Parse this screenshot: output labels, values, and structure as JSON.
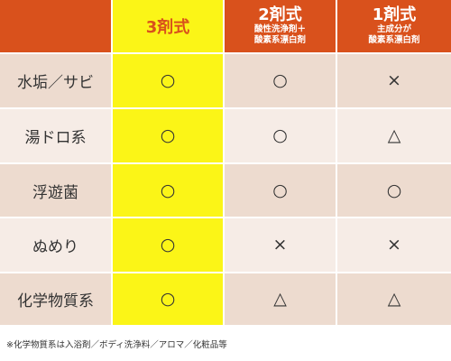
{
  "header": {
    "col1_label": "",
    "col2_label": "3剤式",
    "col3_label": "2剤式",
    "col3_sub1": "酸性洗浄剤＋",
    "col3_sub2": "酸素系漂白剤",
    "col4_label": "1剤式",
    "col4_sub1": "主成分が",
    "col4_sub2": "酸素系漂白剤"
  },
  "rows": [
    {
      "label": "水垢／サビ",
      "three": "○",
      "two": "○",
      "one": "×"
    },
    {
      "label": "湯ドロ系",
      "three": "○",
      "two": "○",
      "one": "△"
    },
    {
      "label": "浮遊菌",
      "three": "○",
      "two": "○",
      "one": "○"
    },
    {
      "label": "ぬめり",
      "three": "○",
      "two": "×",
      "one": "×"
    },
    {
      "label": "化学物質系",
      "three": "○",
      "two": "△",
      "one": "△"
    }
  ],
  "footnote": "※化学物質系は入浴剤／ボディ洗浄料／アロマ／化粧品等",
  "colors": {
    "header_orange": "#d9511c",
    "highlight_yellow": "#fbf517",
    "row_dark": "#eddbcf",
    "row_light": "#f6ece6"
  }
}
